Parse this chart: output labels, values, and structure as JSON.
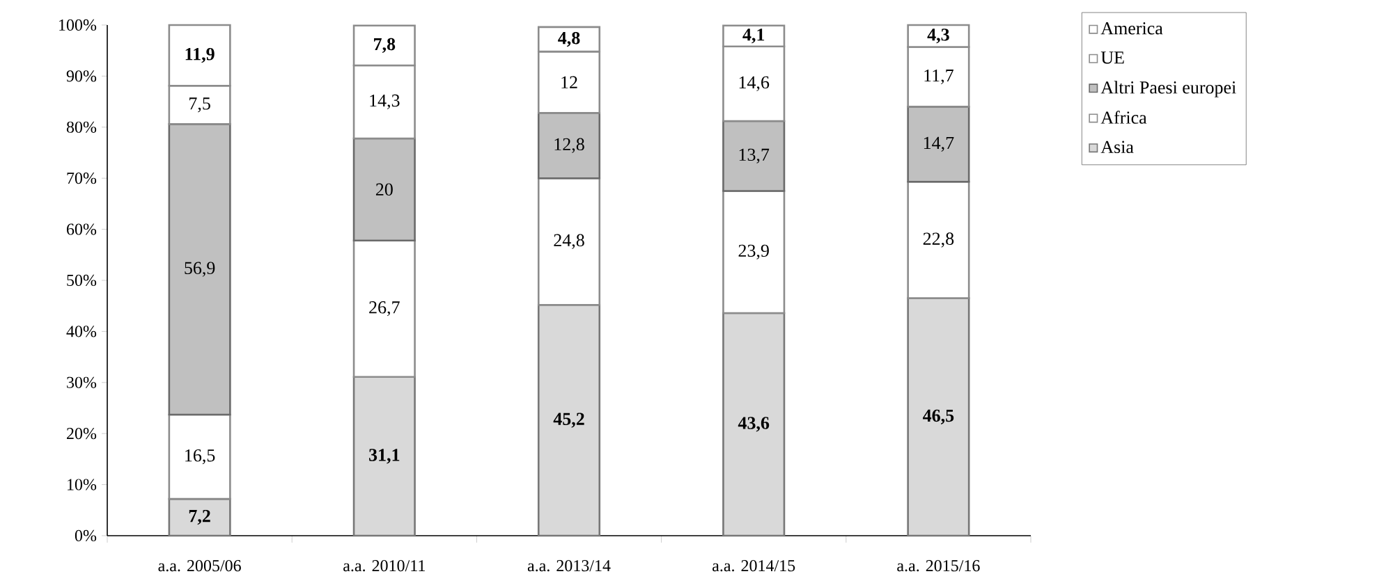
{
  "chart_data": {
    "type": "bar",
    "stacked": true,
    "categories": [
      "a.a. 2005/06",
      "a.a. 2010/11",
      "a.a. 2013/14",
      "a.a. 2014/15",
      "a.a. 2015/16"
    ],
    "series": [
      {
        "name": "Asia",
        "color": "#d9d9d9",
        "values": [
          7.2,
          31.1,
          45.2,
          43.6,
          46.5
        ],
        "value_labels": [
          "**7,2**",
          "**31,1**",
          "**45,2**",
          "**43,6**",
          "**46,5**"
        ]
      },
      {
        "name": "Africa",
        "color": "#ffffff",
        "values": [
          16.5,
          26.7,
          24.8,
          23.9,
          22.8
        ],
        "value_labels": [
          "16,5",
          "26,7",
          "24,8",
          "23,9",
          "22,8"
        ]
      },
      {
        "name": "Altri Paesi europei",
        "color": "#c0c0c0",
        "values": [
          56.9,
          20,
          12.8,
          13.7,
          14.7
        ],
        "value_labels": [
          "56,9",
          "20",
          "12,8",
          "13,7",
          "14,7"
        ]
      },
      {
        "name": "UE",
        "color": "#ffffff",
        "values": [
          7.5,
          14.3,
          12,
          14.6,
          11.7
        ],
        "value_labels": [
          "7,5",
          "14,3",
          "12",
          "14,6",
          "11,7"
        ]
      },
      {
        "name": "America",
        "color": "#ffffff",
        "values": [
          11.9,
          7.8,
          4.8,
          4.1,
          4.3
        ],
        "value_labels": [
          "**11,9**",
          "**7,8**",
          "**4,8**",
          "**4,1**",
          "**4,3**"
        ]
      }
    ],
    "ylim": [
      0,
      100
    ],
    "yticks": [
      {
        "value": 0,
        "label": "0%"
      },
      {
        "value": 10,
        "label": "10%"
      },
      {
        "value": 20,
        "label": "20%"
      },
      {
        "value": 30,
        "label": "30%"
      },
      {
        "value": 40,
        "label": "40%"
      },
      {
        "value": 50,
        "label": "50%"
      },
      {
        "value": 60,
        "label": "60%"
      },
      {
        "value": 70,
        "label": "70%"
      },
      {
        "value": 80,
        "label": "80%"
      },
      {
        "value": 90,
        "label": "90%"
      },
      {
        "value": 100,
        "label": "100%"
      }
    ],
    "legend": "right",
    "grid": false
  }
}
